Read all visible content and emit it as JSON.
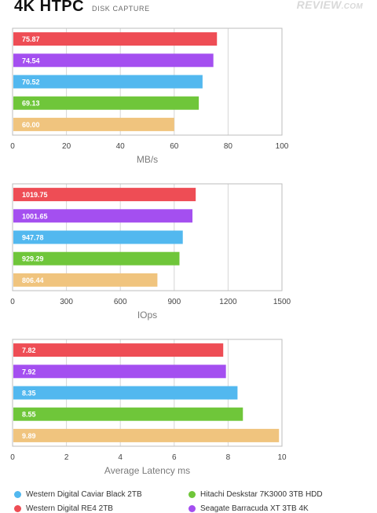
{
  "header": {
    "title": "4K HTPC",
    "subtitle": "DISK CAPTURE",
    "logo_main": "REVIEW",
    "logo_suffix": ".COM"
  },
  "colors": {
    "red": "#ee4d55",
    "purple": "#a44ff0",
    "blue": "#52b8ef",
    "green": "#6fc63a",
    "orange": "#f0c47e"
  },
  "chart_data": [
    {
      "type": "bar",
      "orientation": "horizontal",
      "xlabel": "MB/s",
      "xlim": [
        0,
        100
      ],
      "ticks": [
        0,
        20,
        40,
        60,
        80,
        100
      ],
      "grid": true,
      "values": [
        75.87,
        74.54,
        70.52,
        69.13,
        60.0
      ],
      "labels": [
        "75.87",
        "74.54",
        "70.52",
        "69.13",
        "60.00"
      ],
      "colors": [
        "red",
        "purple",
        "blue",
        "green",
        "orange"
      ]
    },
    {
      "type": "bar",
      "orientation": "horizontal",
      "xlabel": "IOps",
      "xlim": [
        0,
        1500
      ],
      "ticks": [
        0,
        300,
        600,
        900,
        1200,
        1500
      ],
      "grid": true,
      "values": [
        1019.75,
        1001.65,
        947.78,
        929.29,
        806.44
      ],
      "labels": [
        "1019.75",
        "1001.65",
        "947.78",
        "929.29",
        "806.44"
      ],
      "colors": [
        "red",
        "purple",
        "blue",
        "green",
        "orange"
      ]
    },
    {
      "type": "bar",
      "orientation": "horizontal",
      "xlabel": "Average Latency ms",
      "xlim": [
        0,
        10
      ],
      "ticks": [
        0,
        2,
        4,
        6,
        8,
        10
      ],
      "grid": true,
      "values": [
        7.82,
        7.92,
        8.35,
        8.55,
        9.89
      ],
      "labels": [
        "7.82",
        "7.92",
        "8.35",
        "8.55",
        "9.89"
      ],
      "colors": [
        "red",
        "purple",
        "blue",
        "green",
        "orange"
      ]
    }
  ],
  "legend": [
    {
      "label": "Western Digital Caviar Black 2TB",
      "color": "blue"
    },
    {
      "label": "Hitachi Deskstar 7K3000 3TB HDD",
      "color": "green"
    },
    {
      "label": "Western Digital RE4 2TB",
      "color": "red"
    },
    {
      "label": "Seagate Barracuda XT 3TB 4K",
      "color": "purple"
    }
  ]
}
